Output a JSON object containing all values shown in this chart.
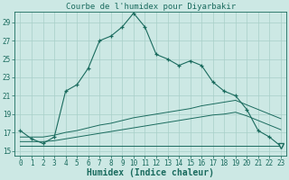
{
  "title": "Courbe de l'humidex pour Diyarbakir",
  "xlabel": "Humidex (Indice chaleur)",
  "bg_color": "#cce8e4",
  "line_color": "#1a6b5e",
  "grid_color": "#a8cfc8",
  "x_ticks": [
    0,
    1,
    2,
    3,
    4,
    5,
    6,
    7,
    8,
    9,
    10,
    11,
    12,
    13,
    14,
    15,
    16,
    17,
    18,
    19,
    20,
    21,
    22,
    23
  ],
  "y_ticks": [
    15,
    17,
    19,
    21,
    23,
    25,
    27,
    29
  ],
  "xlim": [
    -0.5,
    23.5
  ],
  "ylim": [
    14.5,
    30.2
  ],
  "humidex": [
    17.2,
    16.3,
    15.8,
    16.5,
    21.5,
    22.2,
    24.0,
    27.0,
    27.5,
    28.5,
    30.0,
    28.5,
    25.5,
    25.0,
    24.3,
    24.8,
    24.3,
    22.5,
    21.5,
    21.0,
    19.5,
    17.2,
    16.5,
    15.5
  ],
  "min_line": [
    15.5,
    15.5,
    15.5,
    15.5,
    15.5,
    15.5,
    15.5,
    15.5,
    15.5,
    15.5,
    15.5,
    15.5,
    15.5,
    15.5,
    15.5,
    15.5,
    15.5,
    15.5,
    15.5,
    15.5,
    15.5,
    15.5,
    15.5,
    15.5
  ],
  "max_line": [
    16.5,
    16.5,
    16.5,
    16.7,
    17.0,
    17.2,
    17.5,
    17.8,
    18.0,
    18.3,
    18.6,
    18.8,
    19.0,
    19.2,
    19.4,
    19.6,
    19.9,
    20.1,
    20.3,
    20.5,
    20.0,
    19.5,
    19.0,
    18.5
  ],
  "avg_line": [
    16.0,
    16.0,
    16.0,
    16.1,
    16.3,
    16.5,
    16.7,
    16.9,
    17.1,
    17.3,
    17.5,
    17.7,
    17.9,
    18.1,
    18.3,
    18.5,
    18.7,
    18.9,
    19.0,
    19.2,
    18.8,
    18.3,
    17.8,
    17.3
  ],
  "title_fontsize": 6.5,
  "xlabel_fontsize": 7,
  "tick_fontsize": 5.5
}
